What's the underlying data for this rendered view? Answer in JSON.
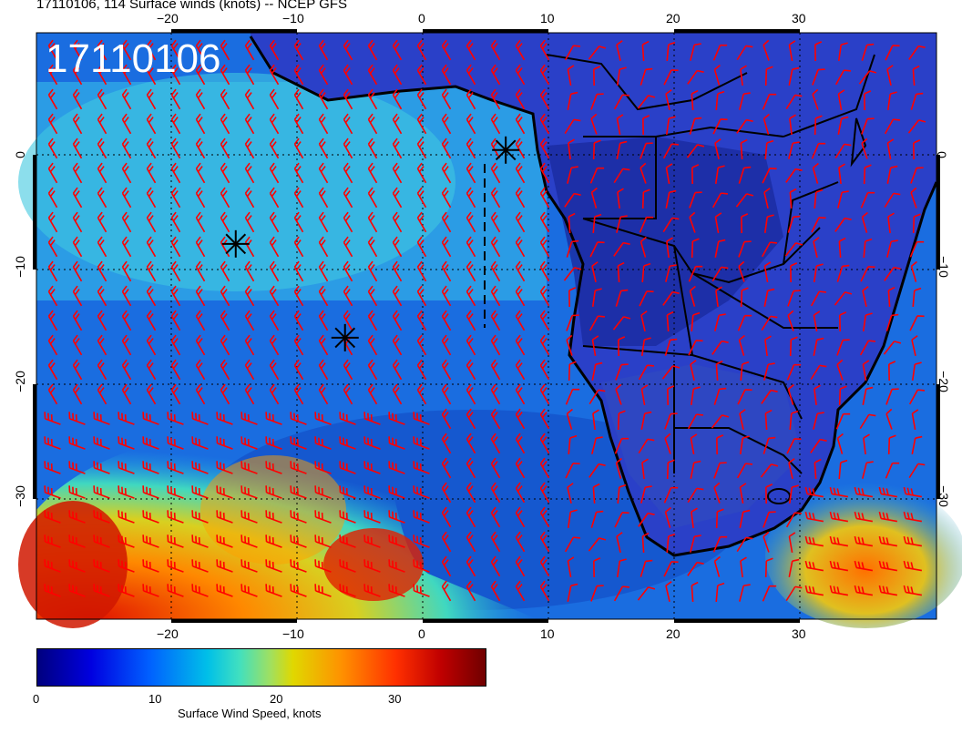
{
  "header": {
    "title": "17110106, 114 Surface winds (knots) -- NCEP GFS",
    "stamp": "17110106"
  },
  "map": {
    "projection": "lat-lon",
    "lon_range": [
      -30,
      40
    ],
    "lat_range": [
      -40,
      10
    ],
    "top_ticks": [
      "−20",
      "−10",
      "0",
      "10",
      "20",
      "30"
    ],
    "bottom_ticks": [
      "−20",
      "−10",
      "0",
      "10",
      "20",
      "30"
    ],
    "left_ticks": [
      "0",
      "−10",
      "−20",
      "−30"
    ],
    "right_ticks": [
      "0",
      "−10",
      "−20",
      "−30"
    ],
    "barb_color": "#ff0000",
    "markers": [
      {
        "type": "asterisk",
        "lon": -14.5,
        "lat": -8
      },
      {
        "type": "asterisk",
        "lon": -6,
        "lat": -16
      },
      {
        "type": "asterisk",
        "lon": 6.5,
        "lat": 0
      }
    ]
  },
  "colorbar": {
    "labels": [
      "0",
      "10",
      "20",
      "30"
    ],
    "title": "Surface Wind Speed, knots",
    "range": [
      0,
      37
    ]
  }
}
